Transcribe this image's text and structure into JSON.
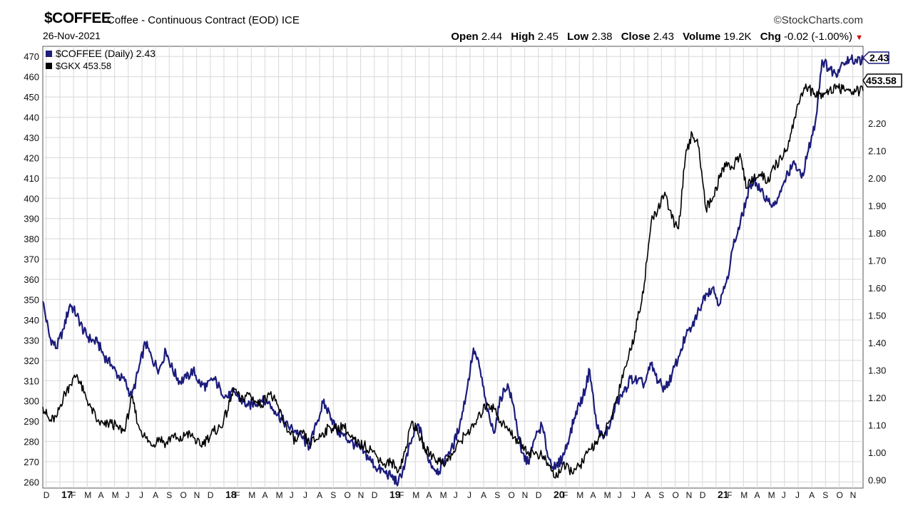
{
  "header": {
    "symbol": "$COFFEE",
    "description": "Coffee - Continuous Contract (EOD) ICE",
    "date": "26-Nov-2021",
    "credit": "©StockCharts.com",
    "open_label": "Open",
    "open": "2.44",
    "high_label": "High",
    "high": "2.45",
    "low_label": "Low",
    "low": "2.38",
    "close_label": "Close",
    "close": "2.43",
    "volume_label": "Volume",
    "volume": "19.2K",
    "chg_label": "Chg",
    "chg": "-0.02 (-1.00%)"
  },
  "legend": [
    {
      "label": "$COFFEE (Daily) 2.43",
      "color": "#1c1c7c"
    },
    {
      "label": "$GKX 453.58",
      "color": "#000000"
    }
  ],
  "price_tags": {
    "coffee": "2.43",
    "gkx": "453.58"
  },
  "chart_data": {
    "type": "line",
    "title": "$COFFEE Coffee - Continuous Contract (EOD) ICE",
    "x_tick_labels": [
      "D",
      "17",
      "F",
      "M",
      "A",
      "M",
      "J",
      "J",
      "A",
      "S",
      "O",
      "N",
      "D",
      "18",
      "F",
      "M",
      "A",
      "M",
      "J",
      "J",
      "A",
      "S",
      "O",
      "N",
      "D",
      "19",
      "F",
      "M",
      "A",
      "M",
      "J",
      "J",
      "A",
      "S",
      "O",
      "N",
      "D",
      "20",
      "F",
      "M",
      "A",
      "M",
      "J",
      "J",
      "A",
      "S",
      "O",
      "N",
      "D",
      "21",
      "F",
      "M",
      "A",
      "M",
      "J",
      "J",
      "A",
      "S",
      "O",
      "N"
    ],
    "x_range": [
      0,
      60
    ],
    "left_axis": {
      "label": "$GKX",
      "ticks": [
        260,
        270,
        280,
        290,
        300,
        310,
        320,
        330,
        340,
        350,
        360,
        370,
        380,
        390,
        400,
        410,
        420,
        430,
        440,
        450,
        460,
        470
      ],
      "range": [
        257,
        475
      ]
    },
    "right_axis": {
      "label": "$COFFEE",
      "ticks": [
        "0.90",
        "1.00",
        "1.10",
        "1.20",
        "1.30",
        "1.40",
        "1.50",
        "1.60",
        "1.70",
        "1.80",
        "1.90",
        "2.00",
        "2.10",
        "2.20"
      ],
      "range": [
        0.87,
        2.48
      ]
    },
    "grid": true,
    "series": [
      {
        "name": "$COFFEE",
        "axis": "right",
        "color": "#1c1c7c",
        "x": [
          0,
          0.5,
          1,
          1.5,
          2,
          2.5,
          3,
          3.5,
          4,
          4.5,
          5,
          5.5,
          6,
          6.5,
          7,
          7.5,
          8,
          8.5,
          9,
          9.5,
          10,
          10.5,
          11,
          11.5,
          12,
          12.5,
          13,
          13.5,
          14,
          14.5,
          15,
          15.5,
          16,
          16.5,
          17,
          17.5,
          18,
          18.5,
          19,
          19.5,
          20,
          20.5,
          21,
          21.5,
          22,
          22.5,
          23,
          23.5,
          24,
          24.5,
          25,
          25.5,
          26,
          26.5,
          27,
          27.5,
          28,
          28.5,
          29,
          29.5,
          30,
          30.5,
          31,
          31.5,
          32,
          32.5,
          33,
          33.5,
          34,
          34.5,
          35,
          35.5,
          36,
          36.5,
          37,
          37.5,
          38,
          38.5,
          39,
          39.5,
          40,
          40.5,
          41,
          41.5,
          42,
          42.5,
          43,
          43.5,
          44,
          44.5,
          45,
          45.5,
          46,
          46.5,
          47,
          47.5,
          48,
          48.5,
          49,
          49.5,
          50,
          50.5,
          51,
          51.5,
          52,
          52.5,
          53,
          53.5,
          54,
          54.5,
          55,
          55.5,
          56,
          56.5,
          57,
          57.5,
          58,
          58.5,
          59,
          59.5,
          60
        ],
        "values": [
          1.55,
          1.42,
          1.38,
          1.45,
          1.54,
          1.5,
          1.44,
          1.41,
          1.4,
          1.35,
          1.32,
          1.28,
          1.26,
          1.2,
          1.3,
          1.4,
          1.34,
          1.3,
          1.37,
          1.3,
          1.26,
          1.27,
          1.3,
          1.25,
          1.24,
          1.27,
          1.23,
          1.2,
          1.22,
          1.19,
          1.17,
          1.18,
          1.19,
          1.18,
          1.15,
          1.12,
          1.09,
          1.08,
          1.05,
          1.02,
          1.1,
          1.18,
          1.14,
          1.08,
          1.06,
          1.04,
          1.02,
          1.0,
          0.97,
          0.94,
          0.93,
          0.91,
          0.89,
          0.96,
          1.05,
          1.1,
          1.0,
          0.95,
          0.93,
          0.99,
          1.02,
          1.1,
          1.22,
          1.38,
          1.3,
          1.15,
          1.07,
          1.2,
          1.25,
          1.15,
          1.0,
          0.96,
          1.05,
          1.1,
          0.98,
          0.94,
          0.98,
          1.05,
          1.15,
          1.2,
          1.3,
          1.1,
          1.05,
          1.1,
          1.18,
          1.22,
          1.27,
          1.26,
          1.25,
          1.32,
          1.26,
          1.23,
          1.28,
          1.35,
          1.42,
          1.46,
          1.52,
          1.58,
          1.6,
          1.54,
          1.62,
          1.75,
          1.83,
          1.93,
          2.0,
          1.95,
          1.92,
          1.9,
          1.95,
          2.02,
          2.05,
          2.0,
          2.1,
          2.2,
          2.43,
          2.4,
          2.38,
          2.42,
          2.43,
          2.43,
          2.43
        ]
      },
      {
        "name": "$GKX",
        "axis": "left",
        "color": "#000000",
        "x": [
          0,
          0.5,
          1,
          1.5,
          2,
          2.5,
          3,
          3.5,
          4,
          4.5,
          5,
          5.5,
          6,
          6.5,
          7,
          7.5,
          8,
          8.5,
          9,
          9.5,
          10,
          10.5,
          11,
          11.5,
          12,
          12.5,
          13,
          13.5,
          14,
          14.5,
          15,
          15.5,
          16,
          16.5,
          17,
          17.5,
          18,
          18.5,
          19,
          19.5,
          20,
          20.5,
          21,
          21.5,
          22,
          22.5,
          23,
          23.5,
          24,
          24.5,
          25,
          25.5,
          26,
          26.5,
          27,
          27.5,
          28,
          28.5,
          29,
          29.5,
          30,
          30.5,
          31,
          31.5,
          32,
          32.5,
          33,
          33.5,
          34,
          34.5,
          35,
          35.5,
          36,
          36.5,
          37,
          37.5,
          38,
          38.5,
          39,
          39.5,
          40,
          40.5,
          41,
          41.5,
          42,
          42.5,
          43,
          43.5,
          44,
          44.5,
          45,
          45.5,
          46,
          46.5,
          47,
          47.5,
          48,
          48.5,
          49,
          49.5,
          50,
          50.5,
          51,
          51.5,
          52,
          52.5,
          53,
          53.5,
          54,
          54.5,
          55,
          55.5,
          56,
          56.5,
          57,
          57.5,
          58,
          58.5,
          59,
          59.5,
          60
        ],
        "values": [
          297,
          290,
          292,
          302,
          308,
          313,
          304,
          297,
          290,
          288,
          289,
          287,
          285,
          302,
          288,
          282,
          278,
          282,
          279,
          283,
          280,
          284,
          282,
          278,
          281,
          285,
          287,
          295,
          306,
          300,
          304,
          300,
          298,
          304,
          300,
          292,
          285,
          280,
          284,
          279,
          281,
          284,
          287,
          286,
          288,
          282,
          279,
          278,
          276,
          272,
          269,
          270,
          265,
          275,
          290,
          283,
          276,
          273,
          270,
          270,
          274,
          280,
          284,
          287,
          293,
          299,
          296,
          290,
          286,
          282,
          279,
          275,
          274,
          273,
          268,
          262,
          268,
          266,
          266,
          270,
          276,
          280,
          283,
          290,
          302,
          315,
          325,
          340,
          358,
          388,
          395,
          403,
          390,
          385,
          420,
          432,
          425,
          395,
          400,
          410,
          418,
          415,
          422,
          405,
          410,
          412,
          408,
          415,
          420,
          425,
          440,
          452,
          455,
          450,
          452,
          453,
          454,
          454,
          453,
          453,
          453
        ]
      }
    ]
  }
}
